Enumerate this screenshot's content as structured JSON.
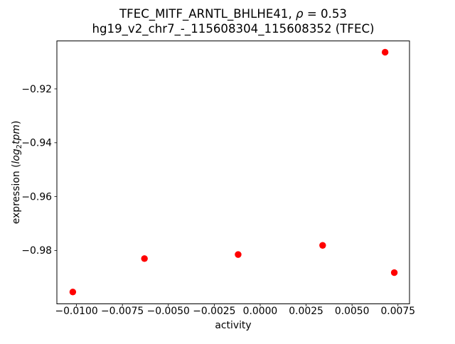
{
  "chart_data": {
    "type": "scatter",
    "title_lines": {
      "line1_pre": "TFEC_MITF_ARNTL_BHLHE41, ",
      "rho": "ρ",
      "line1_post": " = 0.53",
      "line2": "hg19_v2_chr7_-_115608304_115608352 (TFEC)"
    },
    "correlation_rho": 0.53,
    "xlabel": "activity",
    "ylabel_parts": {
      "prefix": "expression (",
      "italic1": "log",
      "sub": "2",
      "italic2": "tpm",
      "suffix": ")"
    },
    "points": [
      {
        "x": -0.0102,
        "y": -0.9954
      },
      {
        "x": -0.0063,
        "y": -0.983
      },
      {
        "x": -0.0012,
        "y": -0.9815
      },
      {
        "x": 0.0034,
        "y": -0.9781
      },
      {
        "x": 0.0068,
        "y": -0.9064
      },
      {
        "x": 0.0073,
        "y": -0.9882
      }
    ],
    "xticks": {
      "values": [
        -0.01,
        -0.0075,
        -0.005,
        -0.0025,
        0.0,
        0.0025,
        0.005,
        0.0075
      ],
      "labels": [
        "−0.0100",
        "−0.0075",
        "−0.0050",
        "−0.0025",
        "0.0000",
        "0.0025",
        "0.0050",
        "0.0075"
      ]
    },
    "yticks": {
      "values": [
        -0.92,
        -0.94,
        -0.96,
        -0.98
      ],
      "labels": [
        "−0.92",
        "−0.94",
        "−0.96",
        "−0.98"
      ]
    },
    "xlim": [
      -0.011067,
      0.008128
    ],
    "ylim": [
      -0.9998,
      -0.90222
    ],
    "grid": false,
    "legend": null,
    "marker_color": "#ff0000",
    "marker_radius_px": 4.7,
    "spine_color": "#000000",
    "background_color": "#ffffff"
  }
}
